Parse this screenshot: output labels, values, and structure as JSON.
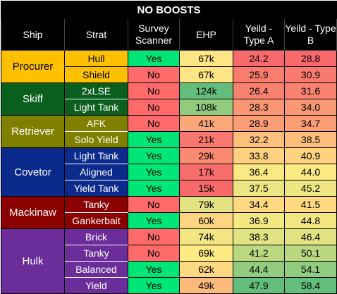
{
  "title": "NO BOOSTS",
  "headers": [
    "Ship",
    "Strat",
    "Survey Scanner",
    "EHP",
    "Yeild - Type A",
    "Yeild - Type B"
  ],
  "groups": [
    {
      "ship": "Procurer",
      "ship_bg": "#ffc000",
      "ship_fg": "#000000",
      "strat_bg": "#ffc000",
      "strat_fg": "#000000",
      "rows": [
        {
          "strat": "Hull",
          "scanner": "Yes",
          "ehp": "67k",
          "ya": "24.2",
          "yb": "28.8"
        },
        {
          "strat": "Shield",
          "scanner": "No",
          "ehp": "67k",
          "ya": "25.9",
          "yb": "30.9"
        }
      ]
    },
    {
      "ship": "Skiff",
      "ship_bg": "#0b5f1e",
      "ship_fg": "#ffffff",
      "strat_bg": "#0b5f1e",
      "strat_fg": "#ffffff",
      "rows": [
        {
          "strat": "2xLSE",
          "scanner": "No",
          "ehp": "124k",
          "ya": "26.4",
          "yb": "31.6"
        },
        {
          "strat": "Light Tank",
          "scanner": "No",
          "ehp": "108k",
          "ya": "28.3",
          "yb": "34.0"
        }
      ]
    },
    {
      "ship": "Retriever",
      "ship_bg": "#808000",
      "ship_fg": "#ffffff",
      "strat_bg": "#808000",
      "strat_fg": "#ffffff",
      "rows": [
        {
          "strat": "AFK",
          "scanner": "No",
          "ehp": "41k",
          "ya": "28.9",
          "yb": "34.7"
        },
        {
          "strat": "Solo Yield",
          "scanner": "Yes",
          "ehp": "21k",
          "ya": "32.2",
          "yb": "38.5"
        }
      ]
    },
    {
      "ship": "Covetor",
      "ship_bg": "#0b2a8c",
      "ship_fg": "#ffffff",
      "strat_bg": "#0b2a8c",
      "strat_fg": "#ffffff",
      "rows": [
        {
          "strat": "Light Tank",
          "scanner": "Yes",
          "ehp": "29k",
          "ya": "33.8",
          "yb": "40.9"
        },
        {
          "strat": "Aligned",
          "scanner": "Yes",
          "ehp": "17k",
          "ya": "36.4",
          "yb": "44.0"
        },
        {
          "strat": "Yield Tank",
          "scanner": "Yes",
          "ehp": "15k",
          "ya": "37.5",
          "yb": "45.2"
        }
      ]
    },
    {
      "ship": "Mackinaw",
      "ship_bg": "#8b0000",
      "ship_fg": "#ffffff",
      "strat_bg": "#8b0000",
      "strat_fg": "#ffffff",
      "rows": [
        {
          "strat": "Tanky",
          "scanner": "No",
          "ehp": "79k",
          "ya": "34.4",
          "yb": "41.5"
        },
        {
          "strat": "Gankerbait",
          "scanner": "Yes",
          "ehp": "60k",
          "ya": "36.9",
          "yb": "44.8"
        }
      ]
    },
    {
      "ship": "Hulk",
      "ship_bg": "#6a2d9a",
      "ship_fg": "#ffffff",
      "strat_bg": "#6a2d9a",
      "strat_fg": "#ffffff",
      "rows": [
        {
          "strat": "Brick",
          "scanner": "No",
          "ehp": "74k",
          "ya": "38.3",
          "yb": "46.4"
        },
        {
          "strat": "Tanky",
          "scanner": "No",
          "ehp": "69k",
          "ya": "41.2",
          "yb": "50.1"
        },
        {
          "strat": "Balanced",
          "scanner": "Yes",
          "ehp": "62k",
          "ya": "44.4",
          "yb": "54.1"
        },
        {
          "strat": "Yield",
          "scanner": "Yes",
          "ehp": "49k",
          "ya": "47.9",
          "yb": "58.4"
        }
      ]
    }
  ],
  "colors": {
    "yes": "#00e676",
    "no": "#ff6b6b",
    "scale_low": "#f8696b",
    "scale_mid": "#ffeb84",
    "scale_high": "#63be7b"
  }
}
